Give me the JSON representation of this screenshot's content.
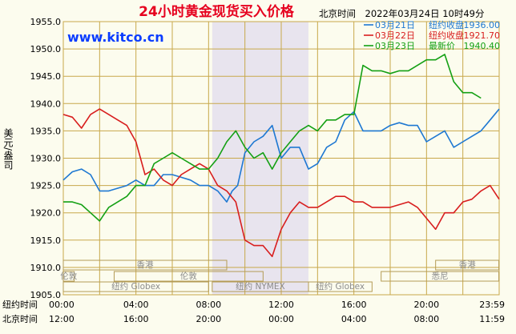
{
  "title": "24小时黄金现货买入价格",
  "header_time": "北京时间　2022年03月24日 10时49分",
  "watermark": "www.kitco.cn",
  "y_axis_unit": "美元/盎司",
  "axis_rows": {
    "ny_label": "纽约时间",
    "bj_label": "北京时间",
    "ny_times": [
      "00:00",
      "04:00",
      "08:00",
      "12:00",
      "16:00",
      "20:00",
      "23:59"
    ],
    "bj_times": [
      "12:00",
      "16:00",
      "20:00",
      "00:00",
      "04:00",
      "08:00",
      "11:59"
    ]
  },
  "markets": [
    {
      "name": "香港",
      "row": 0,
      "start": 0.0,
      "end": 9.0
    },
    {
      "name": "香港",
      "row": 0,
      "start": 20.5,
      "end": 23.98
    },
    {
      "name": "伦敦",
      "row": 1,
      "start": 0.0,
      "end": 0.6
    },
    {
      "name": "伦敦",
      "row": 1,
      "start": 2.8,
      "end": 11.0
    },
    {
      "name": "悉尼",
      "row": 1,
      "start": 17.5,
      "end": 23.98
    },
    {
      "name": "纽约 Globex",
      "row": 2,
      "start": 0.0,
      "end": 8.0
    },
    {
      "name": "纽约 NYMEX",
      "row": 2,
      "start": 8.2,
      "end": 13.5
    },
    {
      "name": "纽约 Globex",
      "row": 2,
      "start": 13.5,
      "end": 17.0
    }
  ],
  "colors": {
    "blue": "#1e78d2",
    "red": "#d81e1e",
    "green": "#14a014",
    "grid": "#c8a84b",
    "highlight": "#e8e4ee",
    "title": "#e6001e",
    "watermark": "#0a3cff"
  },
  "chart_data": {
    "type": "line",
    "x_unit": "hours (New York time)",
    "xlim": [
      0,
      24
    ],
    "ylim": [
      1905,
      1955
    ],
    "y_ticks": [
      1905.0,
      1910.0,
      1915.0,
      1920.0,
      1925.0,
      1930.0,
      1935.0,
      1940.0,
      1945.0,
      1950.0,
      1955.0
    ],
    "highlight_range": [
      8.2,
      13.5
    ],
    "series": [
      {
        "name": "03月21日",
        "legend_label": "纽约收盘",
        "legend_value": "1936.00",
        "color": "#1e78d2",
        "x": [
          0,
          0.5,
          1,
          1.5,
          2,
          2.5,
          3,
          3.5,
          4,
          4.5,
          5,
          5.5,
          6,
          6.5,
          7,
          7.5,
          8,
          8.5,
          9,
          9.3,
          9.6,
          10,
          10.5,
          11,
          11.5,
          12,
          12.5,
          13,
          13.5,
          14,
          14.5,
          15,
          15.5,
          16,
          16.5,
          17,
          17.5,
          18,
          18.5,
          19,
          19.5,
          20,
          20.5,
          21,
          21.5,
          22,
          22.5,
          23,
          23.5,
          24
        ],
        "y": [
          1926,
          1927.5,
          1928,
          1927,
          1924,
          1924,
          1924.5,
          1925,
          1926,
          1925,
          1925,
          1927,
          1927,
          1926.5,
          1926,
          1925,
          1925,
          1924,
          1922,
          1924,
          1925,
          1931,
          1933,
          1934,
          1936,
          1930,
          1932,
          1932,
          1928,
          1929,
          1932,
          1933,
          1937,
          1938.5,
          1935,
          1935,
          1935,
          1936,
          1936.5,
          1936,
          1936,
          1933,
          1934,
          1935,
          1932,
          1933,
          1934,
          1935,
          1937,
          1939
        ]
      },
      {
        "name": "03月22日",
        "legend_label": "纽约收盘",
        "legend_value": "1921.70",
        "color": "#d81e1e",
        "x": [
          0,
          0.5,
          1,
          1.5,
          2,
          2.5,
          3,
          3.5,
          4,
          4.5,
          5,
          5.5,
          6,
          6.5,
          7,
          7.5,
          8,
          8.5,
          9,
          9.5,
          10,
          10.5,
          11,
          11.5,
          12,
          12.5,
          13,
          13.5,
          14,
          14.5,
          15,
          15.5,
          16,
          16.5,
          17,
          17.5,
          18,
          18.5,
          19,
          19.5,
          20,
          20.5,
          21,
          21.5,
          22,
          22.5,
          23,
          23.5,
          24
        ],
        "y": [
          1938,
          1937.5,
          1935.5,
          1938,
          1939,
          1938,
          1937,
          1936,
          1933,
          1927,
          1928,
          1926,
          1925,
          1927,
          1928,
          1929,
          1928,
          1925,
          1924,
          1922,
          1915,
          1914,
          1914,
          1912,
          1917,
          1920,
          1922,
          1921,
          1921,
          1922,
          1923,
          1923,
          1922,
          1922,
          1921,
          1921,
          1921,
          1921.5,
          1922,
          1921,
          1919,
          1917,
          1920,
          1920,
          1922,
          1922.5,
          1924,
          1925,
          1922.5
        ]
      },
      {
        "name": "03月23日",
        "legend_label": "最新价",
        "legend_value": "1940.40",
        "color": "#14a014",
        "x": [
          0,
          0.5,
          1,
          1.5,
          2,
          2.5,
          3,
          3.5,
          4,
          4.5,
          5,
          5.5,
          6,
          6.5,
          7,
          7.5,
          8,
          8.5,
          9,
          9.5,
          10,
          10.5,
          11,
          11.5,
          12,
          12.5,
          13,
          13.5,
          14,
          14.5,
          15,
          15.5,
          16,
          16.5,
          17,
          17.5,
          18,
          18.5,
          19,
          19.5,
          20,
          20.5,
          21,
          21.5,
          22,
          22.5,
          23
        ],
        "y": [
          1922,
          1922,
          1921.5,
          1920,
          1918.5,
          1921,
          1922,
          1923,
          1925,
          1925,
          1929,
          1930,
          1931,
          1930,
          1929,
          1928,
          1928,
          1930,
          1933,
          1935,
          1932,
          1930,
          1931,
          1928,
          1931,
          1933,
          1935,
          1936,
          1935,
          1937,
          1937,
          1938,
          1938,
          1947,
          1946,
          1946,
          1945.5,
          1946,
          1946,
          1947,
          1948,
          1948,
          1949,
          1944,
          1942,
          1942,
          1941
        ]
      }
    ]
  }
}
